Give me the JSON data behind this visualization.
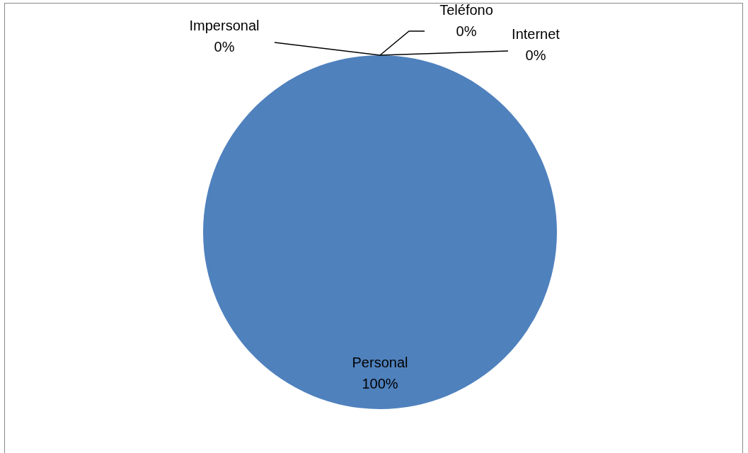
{
  "chart_data": {
    "type": "pie",
    "categories": [
      "Personal",
      "Impersonal",
      "Teléfono",
      "Internet"
    ],
    "values": [
      100,
      0,
      0,
      0
    ],
    "colors": [
      "#4f81bd",
      "#c0504d",
      "#9bbb59",
      "#8064a2"
    ],
    "value_labels": [
      "100%",
      "0%",
      "0%",
      "0%"
    ],
    "legend": false
  }
}
